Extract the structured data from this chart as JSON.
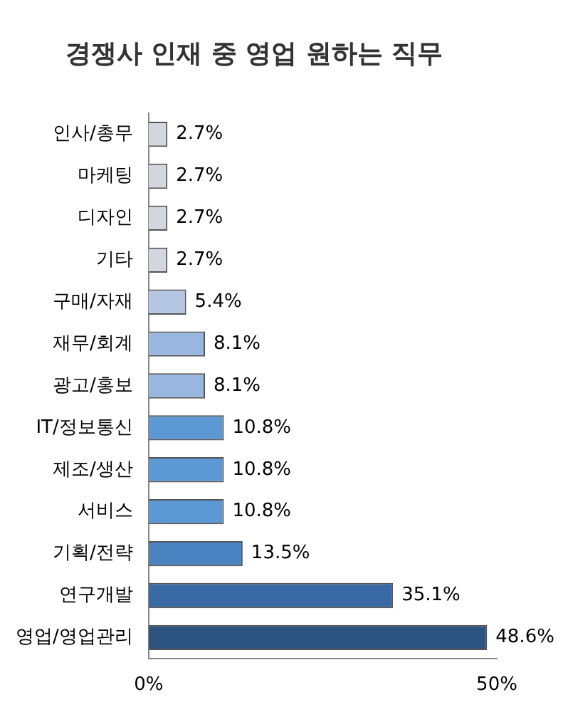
{
  "chart_data": {
    "type": "bar",
    "orientation": "horizontal",
    "title": "경쟁사 인재 중 영업 원하는 직무",
    "categories": [
      "인사/총무",
      "마케팅",
      "디자인",
      "기타",
      "구매/자재",
      "재무/회계",
      "광고/홍보",
      "IT/정보통신",
      "제조/생산",
      "서비스",
      "기획/전략",
      "연구개발",
      "영업/영업관리"
    ],
    "values": [
      2.7,
      2.7,
      2.7,
      2.7,
      5.4,
      8.1,
      8.1,
      10.8,
      10.8,
      10.8,
      13.5,
      35.1,
      48.6
    ],
    "value_labels": [
      "2.7%",
      "2.7%",
      "2.7%",
      "2.7%",
      "5.4%",
      "8.1%",
      "8.1%",
      "10.8%",
      "10.8%",
      "10.8%",
      "13.5%",
      "35.1%",
      "48.6%"
    ],
    "colors": [
      "#d2d6de",
      "#d2d6de",
      "#d2d6de",
      "#d2d6de",
      "#b4c6e2",
      "#98b6e0",
      "#98b6e0",
      "#5c98d4",
      "#5c98d4",
      "#5c98d4",
      "#4a82c2",
      "#3a6aa6",
      "#2e5482"
    ],
    "xlim": [
      0,
      50
    ],
    "xticks": [
      {
        "value": 0,
        "label": "0%"
      },
      {
        "value": 50,
        "label": "50%"
      }
    ],
    "grid": false,
    "legend": false
  }
}
